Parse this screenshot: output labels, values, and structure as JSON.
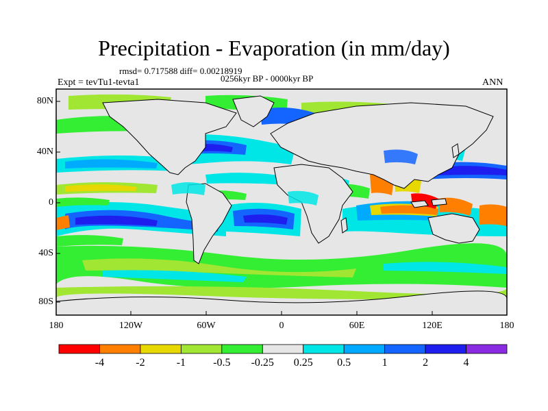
{
  "header": {
    "title": "Precipitation - Evaporation (in mm/day)",
    "stats": "rmsd= 0.717588  diff= 0.00218919",
    "period": "0256kyr BP - 0000kyr BP",
    "experiment": "Expt = tevTu1-tevta1",
    "season": "ANN"
  },
  "axes": {
    "lat_labels": [
      "80N",
      "40N",
      "0",
      "40S",
      "80S"
    ],
    "lon_labels": [
      "180",
      "120W",
      "60W",
      "0",
      "60E",
      "120E",
      "180"
    ]
  },
  "colorbar": {
    "tick_labels": [
      "-4",
      "-2",
      "-1",
      "-0.5",
      "-0.25",
      "0.25",
      "0.5",
      "1",
      "2",
      "4"
    ],
    "colors": [
      "#ff0000",
      "#ff8000",
      "#e6d800",
      "#a0e632",
      "#33ee33",
      "#e6e6e6",
      "#00e6e6",
      "#00aaff",
      "#1464ff",
      "#1e1eee",
      "#8a2be2"
    ]
  }
}
